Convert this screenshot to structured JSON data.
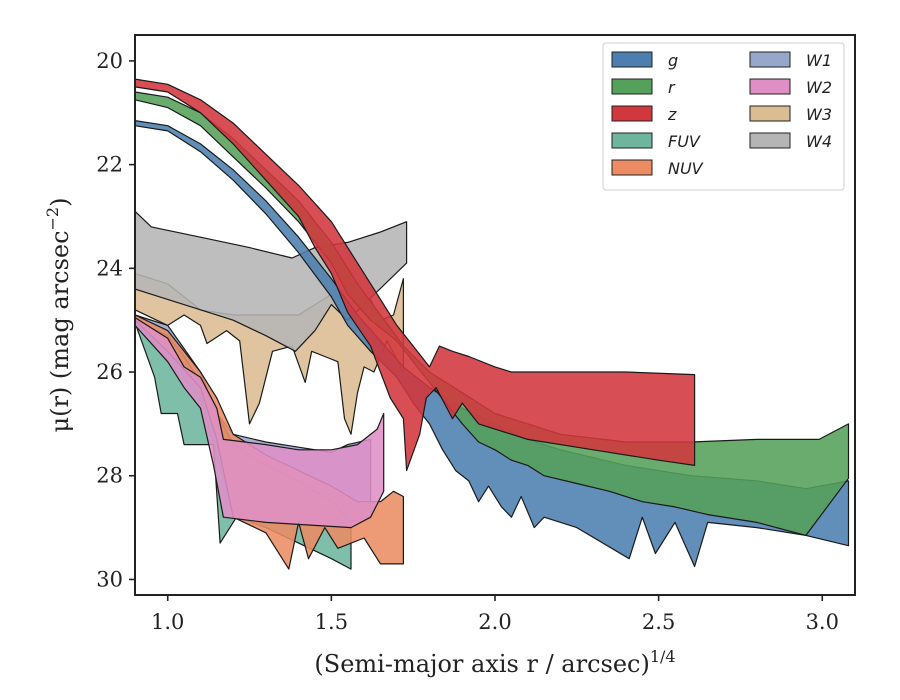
{
  "chart_data": {
    "type": "area",
    "xlabel": "(Semi-major axis r / arcsec)",
    "xlabel_exponent": "1/4",
    "ylabel": "μ(r) (mag arcsec",
    "ylabel_exponent": "−2",
    "ylabel_suffix": ")",
    "xlim": [
      0.9,
      3.1
    ],
    "ylim": [
      30.3,
      19.5
    ],
    "y_inverted": true,
    "x_ticks": [
      1.0,
      1.5,
      2.0,
      2.5,
      3.0
    ],
    "x_tick_labels": [
      "1.0",
      "1.5",
      "2.0",
      "2.5",
      "3.0"
    ],
    "y_ticks": [
      20,
      22,
      24,
      26,
      28,
      30
    ],
    "y_tick_labels": [
      "20",
      "22",
      "24",
      "26",
      "28",
      "30"
    ],
    "grid": false,
    "legend_position": "top-right",
    "legend_columns": 2,
    "series": [
      {
        "name": "g",
        "color": "#4c7fb0",
        "upper": [
          [
            0.9,
            21.15
          ],
          [
            1.0,
            21.25
          ],
          [
            1.1,
            21.6
          ],
          [
            1.2,
            22.1
          ],
          [
            1.3,
            22.7
          ],
          [
            1.4,
            23.4
          ],
          [
            1.5,
            24.2
          ],
          [
            1.58,
            24.9
          ],
          [
            1.65,
            25.4
          ],
          [
            1.72,
            25.9
          ],
          [
            1.8,
            26.3
          ],
          [
            1.9,
            26.7
          ],
          [
            2.0,
            27.0
          ],
          [
            2.1,
            27.3
          ],
          [
            2.2,
            27.5
          ],
          [
            2.4,
            27.8
          ],
          [
            2.6,
            28.0
          ],
          [
            2.8,
            28.1
          ],
          [
            2.95,
            28.25
          ],
          [
            3.08,
            28.1
          ]
        ],
        "lower": [
          [
            3.08,
            29.35
          ],
          [
            2.95,
            29.15
          ],
          [
            2.8,
            29.0
          ],
          [
            2.65,
            28.9
          ],
          [
            2.61,
            29.75
          ],
          [
            2.55,
            28.9
          ],
          [
            2.49,
            29.5
          ],
          [
            2.45,
            28.8
          ],
          [
            2.41,
            29.6
          ],
          [
            2.25,
            29.0
          ],
          [
            2.15,
            28.8
          ],
          [
            2.12,
            29.0
          ],
          [
            2.08,
            28.4
          ],
          [
            2.05,
            28.8
          ],
          [
            2.02,
            28.6
          ],
          [
            1.98,
            28.2
          ],
          [
            1.95,
            28.5
          ],
          [
            1.92,
            28.1
          ],
          [
            1.88,
            27.9
          ],
          [
            1.84,
            27.5
          ],
          [
            1.8,
            27.0
          ],
          [
            1.75,
            26.6
          ],
          [
            1.7,
            26.1
          ],
          [
            1.62,
            25.6
          ],
          [
            1.55,
            25.1
          ],
          [
            1.5,
            24.55
          ],
          [
            1.4,
            23.7
          ],
          [
            1.3,
            22.95
          ],
          [
            1.2,
            22.3
          ],
          [
            1.1,
            21.75
          ],
          [
            1.0,
            21.35
          ],
          [
            0.9,
            21.25
          ]
        ]
      },
      {
        "name": "r",
        "color": "#55a05a",
        "upper": [
          [
            0.9,
            20.6
          ],
          [
            1.0,
            20.7
          ],
          [
            1.1,
            21.0
          ],
          [
            1.2,
            21.5
          ],
          [
            1.3,
            22.1
          ],
          [
            1.4,
            22.7
          ],
          [
            1.5,
            23.5
          ],
          [
            1.58,
            24.3
          ],
          [
            1.65,
            24.9
          ],
          [
            1.72,
            25.5
          ],
          [
            1.8,
            26.0
          ],
          [
            1.9,
            26.4
          ],
          [
            2.0,
            26.8
          ],
          [
            2.2,
            27.2
          ],
          [
            2.4,
            27.35
          ],
          [
            2.6,
            27.35
          ],
          [
            2.8,
            27.3
          ],
          [
            2.99,
            27.3
          ],
          [
            3.08,
            27.0
          ]
        ],
        "lower": [
          [
            3.08,
            28.05
          ],
          [
            2.95,
            29.15
          ],
          [
            2.8,
            28.9
          ],
          [
            2.65,
            28.75
          ],
          [
            2.55,
            28.6
          ],
          [
            2.45,
            28.5
          ],
          [
            2.35,
            28.3
          ],
          [
            2.25,
            28.15
          ],
          [
            2.15,
            28.0
          ],
          [
            2.1,
            27.8
          ],
          [
            2.05,
            27.7
          ],
          [
            2.0,
            27.5
          ],
          [
            1.95,
            27.35
          ],
          [
            1.9,
            27.0
          ],
          [
            1.85,
            26.6
          ],
          [
            1.8,
            26.2
          ],
          [
            1.75,
            25.8
          ],
          [
            1.7,
            25.4
          ],
          [
            1.62,
            25.0
          ],
          [
            1.55,
            24.5
          ],
          [
            1.5,
            23.9
          ],
          [
            1.4,
            23.1
          ],
          [
            1.3,
            22.45
          ],
          [
            1.2,
            21.85
          ],
          [
            1.1,
            21.25
          ],
          [
            1.0,
            20.9
          ],
          [
            0.9,
            20.75
          ]
        ]
      },
      {
        "name": "z",
        "color": "#d1373c",
        "upper": [
          [
            0.9,
            20.35
          ],
          [
            1.0,
            20.45
          ],
          [
            1.1,
            20.75
          ],
          [
            1.2,
            21.2
          ],
          [
            1.3,
            21.8
          ],
          [
            1.4,
            22.4
          ],
          [
            1.5,
            23.1
          ],
          [
            1.58,
            23.9
          ],
          [
            1.65,
            24.6
          ],
          [
            1.7,
            25.1
          ],
          [
            1.75,
            25.5
          ],
          [
            1.8,
            25.9
          ],
          [
            1.83,
            25.5
          ],
          [
            1.87,
            25.6
          ],
          [
            1.92,
            25.7
          ],
          [
            2.0,
            25.9
          ],
          [
            2.05,
            26.0
          ],
          [
            2.2,
            26.0
          ],
          [
            2.4,
            26.0
          ],
          [
            2.61,
            26.05
          ]
        ],
        "lower": [
          [
            2.61,
            27.8
          ],
          [
            2.5,
            27.7
          ],
          [
            2.3,
            27.5
          ],
          [
            2.1,
            27.3
          ],
          [
            1.95,
            27.0
          ],
          [
            1.9,
            26.6
          ],
          [
            1.87,
            26.9
          ],
          [
            1.82,
            26.3
          ],
          [
            1.79,
            26.5
          ],
          [
            1.77,
            27.2
          ],
          [
            1.73,
            27.9
          ],
          [
            1.72,
            26.9
          ],
          [
            1.68,
            26.5
          ],
          [
            1.62,
            25.5
          ],
          [
            1.55,
            24.85
          ],
          [
            1.5,
            24.1
          ],
          [
            1.45,
            23.6
          ],
          [
            1.4,
            23.0
          ],
          [
            1.3,
            22.3
          ],
          [
            1.2,
            21.6
          ],
          [
            1.1,
            21.0
          ],
          [
            1.0,
            20.6
          ],
          [
            0.9,
            20.5
          ]
        ]
      },
      {
        "name": "FUV",
        "color": "#6db59c",
        "upper": [
          [
            0.9,
            25.0
          ],
          [
            1.0,
            25.3
          ],
          [
            1.05,
            25.7
          ],
          [
            1.1,
            26.2
          ],
          [
            1.15,
            26.8
          ],
          [
            1.2,
            27.4
          ],
          [
            1.3,
            27.8
          ],
          [
            1.4,
            28.1
          ],
          [
            1.5,
            28.5
          ],
          [
            1.56,
            28.9
          ]
        ],
        "lower": [
          [
            1.56,
            29.8
          ],
          [
            1.5,
            29.6
          ],
          [
            1.4,
            29.3
          ],
          [
            1.3,
            29.0
          ],
          [
            1.21,
            28.8
          ],
          [
            1.16,
            29.3
          ],
          [
            1.14,
            27.4
          ],
          [
            1.05,
            27.4
          ],
          [
            1.03,
            26.8
          ],
          [
            0.98,
            26.8
          ],
          [
            0.96,
            26.1
          ],
          [
            0.9,
            25.05
          ]
        ]
      },
      {
        "name": "NUV",
        "color": "#eb8c64",
        "upper": [
          [
            0.9,
            24.9
          ],
          [
            1.0,
            25.2
          ],
          [
            1.05,
            25.6
          ],
          [
            1.1,
            26.0
          ],
          [
            1.15,
            26.5
          ],
          [
            1.2,
            27.2
          ],
          [
            1.3,
            27.6
          ],
          [
            1.4,
            27.9
          ],
          [
            1.5,
            28.2
          ],
          [
            1.58,
            28.5
          ],
          [
            1.65,
            28.5
          ],
          [
            1.69,
            28.3
          ],
          [
            1.72,
            28.4
          ]
        ],
        "lower": [
          [
            1.72,
            29.7
          ],
          [
            1.65,
            29.7
          ],
          [
            1.6,
            29.2
          ],
          [
            1.52,
            29.4
          ],
          [
            1.48,
            29.0
          ],
          [
            1.43,
            29.6
          ],
          [
            1.4,
            28.9
          ],
          [
            1.37,
            29.8
          ],
          [
            1.3,
            29.1
          ],
          [
            1.2,
            28.8
          ],
          [
            1.15,
            27.3
          ],
          [
            1.1,
            26.3
          ],
          [
            1.0,
            25.6
          ],
          [
            0.9,
            25.0
          ]
        ]
      },
      {
        "name": "W1",
        "color": "#97a7cc",
        "upper": [
          [
            0.9,
            24.9
          ],
          [
            1.0,
            25.1
          ],
          [
            1.1,
            26.0
          ],
          [
            1.15,
            26.8
          ],
          [
            1.2,
            27.2
          ],
          [
            1.3,
            27.35
          ],
          [
            1.4,
            27.45
          ],
          [
            1.5,
            27.55
          ],
          [
            1.55,
            27.4
          ],
          [
            1.62,
            27.3
          ]
        ],
        "lower": [
          [
            1.62,
            28.8
          ],
          [
            1.55,
            28.9
          ],
          [
            1.5,
            28.8
          ],
          [
            1.4,
            28.75
          ],
          [
            1.3,
            28.7
          ],
          [
            1.2,
            28.7
          ],
          [
            1.15,
            27.6
          ],
          [
            1.1,
            26.5
          ],
          [
            1.0,
            25.8
          ],
          [
            0.9,
            25.0
          ]
        ]
      },
      {
        "name": "W2",
        "color": "#df8fc6",
        "upper": [
          [
            0.9,
            24.95
          ],
          [
            1.0,
            25.35
          ],
          [
            1.05,
            25.9
          ],
          [
            1.1,
            26.1
          ],
          [
            1.15,
            26.7
          ],
          [
            1.17,
            27.3
          ],
          [
            1.3,
            27.4
          ],
          [
            1.4,
            27.5
          ],
          [
            1.5,
            27.5
          ],
          [
            1.58,
            27.4
          ],
          [
            1.64,
            27.1
          ],
          [
            1.66,
            26.8
          ]
        ],
        "lower": [
          [
            1.66,
            28.3
          ],
          [
            1.62,
            28.8
          ],
          [
            1.56,
            29.0
          ],
          [
            1.3,
            28.9
          ],
          [
            1.17,
            28.8
          ],
          [
            1.14,
            27.8
          ],
          [
            1.1,
            26.7
          ],
          [
            1.05,
            26.3
          ],
          [
            1.0,
            25.8
          ],
          [
            0.9,
            25.1
          ]
        ]
      },
      {
        "name": "W3",
        "color": "#dcbc92",
        "upper": [
          [
            0.9,
            24.1
          ],
          [
            1.0,
            24.3
          ],
          [
            1.1,
            24.8
          ],
          [
            1.2,
            24.9
          ],
          [
            1.3,
            24.9
          ],
          [
            1.4,
            24.9
          ],
          [
            1.5,
            24.5
          ],
          [
            1.58,
            24.7
          ],
          [
            1.62,
            24.6
          ],
          [
            1.65,
            25.0
          ],
          [
            1.69,
            24.9
          ],
          [
            1.72,
            24.2
          ]
        ],
        "lower": [
          [
            1.72,
            26.0
          ],
          [
            1.67,
            25.4
          ],
          [
            1.63,
            26.0
          ],
          [
            1.6,
            25.9
          ],
          [
            1.58,
            26.4
          ],
          [
            1.56,
            27.2
          ],
          [
            1.54,
            26.9
          ],
          [
            1.52,
            25.8
          ],
          [
            1.48,
            25.7
          ],
          [
            1.44,
            25.6
          ],
          [
            1.42,
            26.2
          ],
          [
            1.38,
            25.5
          ],
          [
            1.32,
            25.6
          ],
          [
            1.28,
            26.6
          ],
          [
            1.25,
            27.0
          ],
          [
            1.22,
            25.4
          ],
          [
            1.18,
            25.2
          ],
          [
            1.12,
            25.45
          ],
          [
            1.1,
            25.1
          ],
          [
            1.05,
            24.9
          ],
          [
            1.0,
            25.1
          ],
          [
            0.9,
            24.8
          ]
        ]
      },
      {
        "name": "W4",
        "color": "#b5b5b5",
        "upper": [
          [
            0.9,
            22.9
          ],
          [
            0.95,
            23.2
          ],
          [
            1.1,
            23.4
          ],
          [
            1.25,
            23.6
          ],
          [
            1.38,
            23.8
          ],
          [
            1.45,
            23.6
          ],
          [
            1.55,
            23.5
          ],
          [
            1.65,
            23.3
          ],
          [
            1.73,
            23.1
          ]
        ],
        "lower": [
          [
            1.73,
            23.9
          ],
          [
            1.55,
            25.0
          ],
          [
            1.5,
            24.7
          ],
          [
            1.45,
            25.2
          ],
          [
            1.39,
            25.6
          ],
          [
            1.3,
            25.3
          ],
          [
            1.2,
            25.0
          ],
          [
            1.1,
            24.8
          ],
          [
            1.0,
            24.6
          ],
          [
            0.9,
            24.4
          ]
        ]
      }
    ]
  }
}
